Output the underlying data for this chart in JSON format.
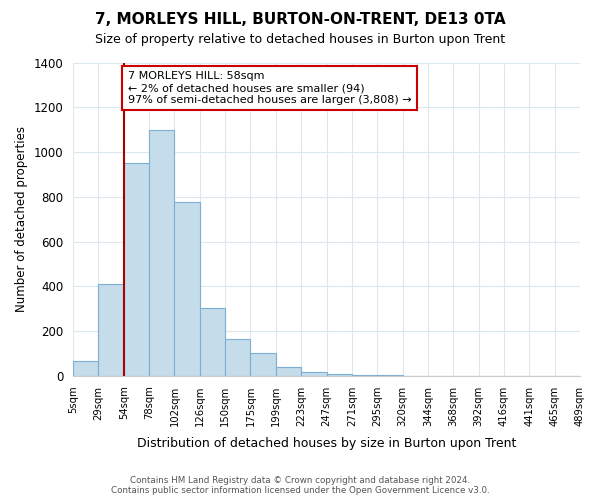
{
  "title": "7, MORLEYS HILL, BURTON-ON-TRENT, DE13 0TA",
  "subtitle": "Size of property relative to detached houses in Burton upon Trent",
  "xlabel": "Distribution of detached houses by size in Burton upon Trent",
  "ylabel": "Number of detached properties",
  "bin_labels": [
    "5sqm",
    "29sqm",
    "54sqm",
    "78sqm",
    "102sqm",
    "126sqm",
    "150sqm",
    "175sqm",
    "199sqm",
    "223sqm",
    "247sqm",
    "271sqm",
    "295sqm",
    "320sqm",
    "344sqm",
    "368sqm",
    "392sqm",
    "416sqm",
    "441sqm",
    "465sqm",
    "489sqm"
  ],
  "bar_values": [
    65,
    410,
    950,
    1100,
    775,
    305,
    165,
    100,
    38,
    18,
    10,
    5,
    2,
    0,
    0,
    0,
    0,
    0,
    0,
    0
  ],
  "bar_color": "#c5dcea",
  "bar_edge_color": "#7bafd4",
  "vline_x_index": 2,
  "vline_color": "#aa0000",
  "annotation_text": "7 MORLEYS HILL: 58sqm\n← 2% of detached houses are smaller (94)\n97% of semi-detached houses are larger (3,808) →",
  "annotation_box_color": "white",
  "annotation_box_edge": "#cc0000",
  "ylim": [
    0,
    1400
  ],
  "yticks": [
    0,
    200,
    400,
    600,
    800,
    1000,
    1200,
    1400
  ],
  "footer_line1": "Contains HM Land Registry data © Crown copyright and database right 2024.",
  "footer_line2": "Contains public sector information licensed under the Open Government Licence v3.0.",
  "bg_color": "white",
  "grid_color": "#dce8f0",
  "figsize": [
    6.0,
    5.0
  ],
  "dpi": 100
}
